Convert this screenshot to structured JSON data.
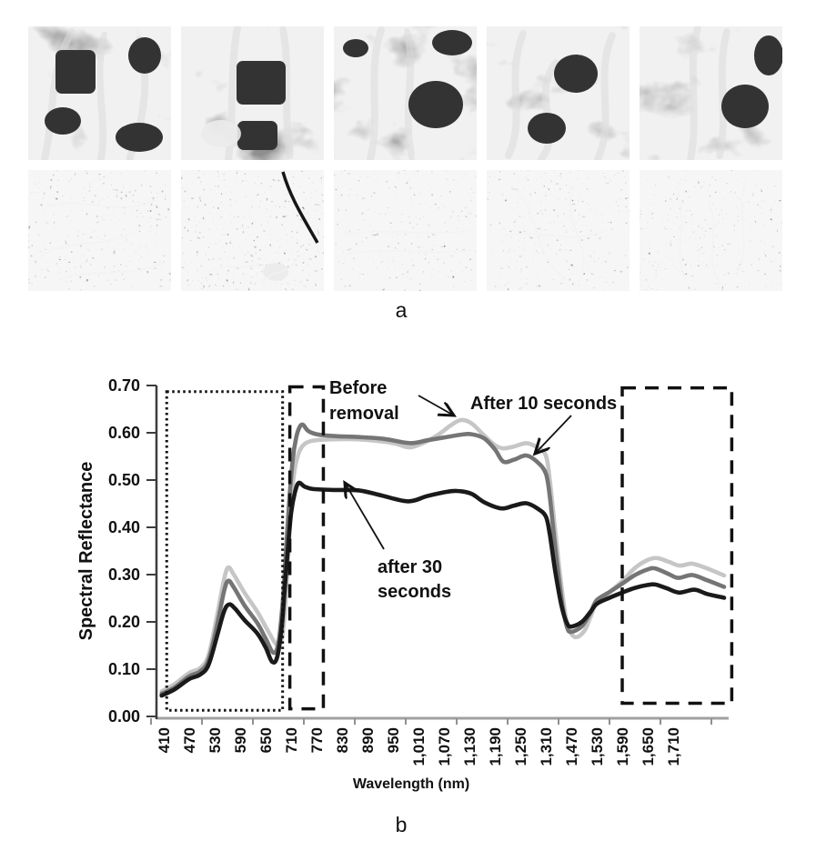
{
  "labels": {
    "a": "a",
    "b": "b"
  },
  "sem_panel": {
    "rows": 2,
    "cols": 5,
    "row1": "porous cross-section micrographs",
    "row2": "surface texture micrographs"
  },
  "chart_data": {
    "type": "line",
    "title": "",
    "xlabel": "Wavelength (nm)",
    "ylabel": "Spectral Reflectance",
    "ylim": [
      0.0,
      0.7
    ],
    "ytick_step": 0.1,
    "yticks": [
      0.0,
      0.1,
      0.2,
      0.3,
      0.4,
      0.5,
      0.6,
      0.7
    ],
    "xticklabels": [
      "410",
      "470",
      "530",
      "590",
      "650",
      "710",
      "770",
      "830",
      "890",
      "950",
      "1,010",
      "1,070",
      "1,130",
      "1,190",
      "1,250",
      "1,310",
      "1,470",
      "1,530",
      "1,590",
      "1,650",
      "1,710"
    ],
    "x_axis_note": "categorical, 60 nm per step, gap between 1,310 and 1,470",
    "grid": false,
    "legend_position": "in-plot text annotations with arrows",
    "series": [
      {
        "name": "Before removal",
        "color": "#c6c6c6",
        "points": [
          [
            405,
            0.053
          ],
          [
            435,
            0.068
          ],
          [
            470,
            0.092
          ],
          [
            495,
            0.102
          ],
          [
            515,
            0.128
          ],
          [
            535,
            0.21
          ],
          [
            552,
            0.29
          ],
          [
            562,
            0.315
          ],
          [
            575,
            0.3
          ],
          [
            600,
            0.262
          ],
          [
            630,
            0.222
          ],
          [
            655,
            0.182
          ],
          [
            676,
            0.152
          ],
          [
            688,
            0.165
          ],
          [
            695,
            0.22
          ],
          [
            702,
            0.32
          ],
          [
            710,
            0.45
          ],
          [
            718,
            0.52
          ],
          [
            728,
            0.557
          ],
          [
            740,
            0.575
          ],
          [
            760,
            0.583
          ],
          [
            800,
            0.586
          ],
          [
            870,
            0.586
          ],
          [
            930,
            0.581
          ],
          [
            960,
            0.576
          ],
          [
            990,
            0.569
          ],
          [
            1025,
            0.58
          ],
          [
            1060,
            0.598
          ],
          [
            1085,
            0.615
          ],
          [
            1110,
            0.627
          ],
          [
            1135,
            0.62
          ],
          [
            1165,
            0.594
          ],
          [
            1190,
            0.574
          ],
          [
            1210,
            0.567
          ],
          [
            1235,
            0.571
          ],
          [
            1264,
            0.578
          ],
          [
            1290,
            0.569
          ],
          [
            1310,
            0.552
          ],
          [
            1335,
            0.5
          ],
          [
            1370,
            0.39
          ],
          [
            1410,
            0.27
          ],
          [
            1445,
            0.195
          ],
          [
            1478,
            0.168
          ],
          [
            1500,
            0.18
          ],
          [
            1515,
            0.21
          ],
          [
            1530,
            0.241
          ],
          [
            1560,
            0.263
          ],
          [
            1590,
            0.286
          ],
          [
            1620,
            0.314
          ],
          [
            1650,
            0.331
          ],
          [
            1672,
            0.335
          ],
          [
            1700,
            0.327
          ],
          [
            1725,
            0.319
          ],
          [
            1755,
            0.323
          ],
          [
            1790,
            0.313
          ],
          [
            1830,
            0.298
          ]
        ]
      },
      {
        "name": "After 10 seconds",
        "color": "#757575",
        "points": [
          [
            405,
            0.048
          ],
          [
            435,
            0.061
          ],
          [
            470,
            0.085
          ],
          [
            495,
            0.095
          ],
          [
            515,
            0.118
          ],
          [
            535,
            0.19
          ],
          [
            552,
            0.265
          ],
          [
            562,
            0.287
          ],
          [
            575,
            0.273
          ],
          [
            600,
            0.235
          ],
          [
            630,
            0.198
          ],
          [
            650,
            0.165
          ],
          [
            668,
            0.135
          ],
          [
            680,
            0.155
          ],
          [
            690,
            0.24
          ],
          [
            698,
            0.35
          ],
          [
            706,
            0.46
          ],
          [
            714,
            0.545
          ],
          [
            722,
            0.59
          ],
          [
            730,
            0.612
          ],
          [
            738,
            0.617
          ],
          [
            750,
            0.604
          ],
          [
            770,
            0.597
          ],
          [
            810,
            0.593
          ],
          [
            870,
            0.591
          ],
          [
            930,
            0.587
          ],
          [
            990,
            0.578
          ],
          [
            1030,
            0.584
          ],
          [
            1070,
            0.59
          ],
          [
            1110,
            0.596
          ],
          [
            1135,
            0.597
          ],
          [
            1165,
            0.588
          ],
          [
            1190,
            0.565
          ],
          [
            1210,
            0.539
          ],
          [
            1235,
            0.543
          ],
          [
            1264,
            0.552
          ],
          [
            1290,
            0.538
          ],
          [
            1310,
            0.514
          ],
          [
            1335,
            0.465
          ],
          [
            1370,
            0.355
          ],
          [
            1410,
            0.245
          ],
          [
            1442,
            0.19
          ],
          [
            1470,
            0.179
          ],
          [
            1495,
            0.191
          ],
          [
            1515,
            0.219
          ],
          [
            1530,
            0.246
          ],
          [
            1560,
            0.263
          ],
          [
            1590,
            0.281
          ],
          [
            1620,
            0.299
          ],
          [
            1650,
            0.311
          ],
          [
            1668,
            0.313
          ],
          [
            1700,
            0.301
          ],
          [
            1722,
            0.293
          ],
          [
            1755,
            0.299
          ],
          [
            1790,
            0.288
          ],
          [
            1830,
            0.274
          ]
        ]
      },
      {
        "name": "after 30 seconds",
        "color": "#1a1a1a",
        "points": [
          [
            405,
            0.044
          ],
          [
            435,
            0.057
          ],
          [
            470,
            0.079
          ],
          [
            495,
            0.088
          ],
          [
            515,
            0.108
          ],
          [
            535,
            0.168
          ],
          [
            552,
            0.222
          ],
          [
            564,
            0.237
          ],
          [
            578,
            0.228
          ],
          [
            600,
            0.204
          ],
          [
            630,
            0.176
          ],
          [
            650,
            0.146
          ],
          [
            665,
            0.116
          ],
          [
            677,
            0.125
          ],
          [
            688,
            0.19
          ],
          [
            695,
            0.27
          ],
          [
            702,
            0.35
          ],
          [
            710,
            0.43
          ],
          [
            719,
            0.474
          ],
          [
            728,
            0.494
          ],
          [
            742,
            0.486
          ],
          [
            762,
            0.481
          ],
          [
            810,
            0.479
          ],
          [
            870,
            0.478
          ],
          [
            920,
            0.468
          ],
          [
            985,
            0.455
          ],
          [
            1030,
            0.466
          ],
          [
            1070,
            0.474
          ],
          [
            1100,
            0.477
          ],
          [
            1135,
            0.471
          ],
          [
            1165,
            0.453
          ],
          [
            1205,
            0.44
          ],
          [
            1235,
            0.446
          ],
          [
            1264,
            0.451
          ],
          [
            1290,
            0.44
          ],
          [
            1310,
            0.423
          ],
          [
            1335,
            0.385
          ],
          [
            1370,
            0.305
          ],
          [
            1410,
            0.232
          ],
          [
            1442,
            0.198
          ],
          [
            1470,
            0.19
          ],
          [
            1495,
            0.2
          ],
          [
            1515,
            0.221
          ],
          [
            1530,
            0.238
          ],
          [
            1560,
            0.251
          ],
          [
            1590,
            0.262
          ],
          [
            1620,
            0.272
          ],
          [
            1650,
            0.278
          ],
          [
            1668,
            0.279
          ],
          [
            1695,
            0.271
          ],
          [
            1724,
            0.262
          ],
          [
            1760,
            0.268
          ],
          [
            1790,
            0.259
          ],
          [
            1830,
            0.251
          ]
        ]
      }
    ],
    "annotations": [
      {
        "id": "before-removal",
        "lines": [
          "Before",
          "removal"
        ]
      },
      {
        "id": "after-10",
        "lines": [
          "After 10 seconds"
        ]
      },
      {
        "id": "after-30",
        "lines": [
          "after 30",
          "seconds"
        ]
      }
    ],
    "highlight_boxes": [
      {
        "style": "dotted",
        "nm": [
          417,
          690
        ],
        "value": [
          0.013,
          0.687
        ]
      },
      {
        "style": "dashed",
        "nm": [
          707,
          786
        ],
        "value": [
          0.016,
          0.697
        ]
      },
      {
        "style": "dashed",
        "nm": [
          1590,
          1848
        ],
        "value": [
          0.028,
          0.695
        ]
      }
    ]
  }
}
